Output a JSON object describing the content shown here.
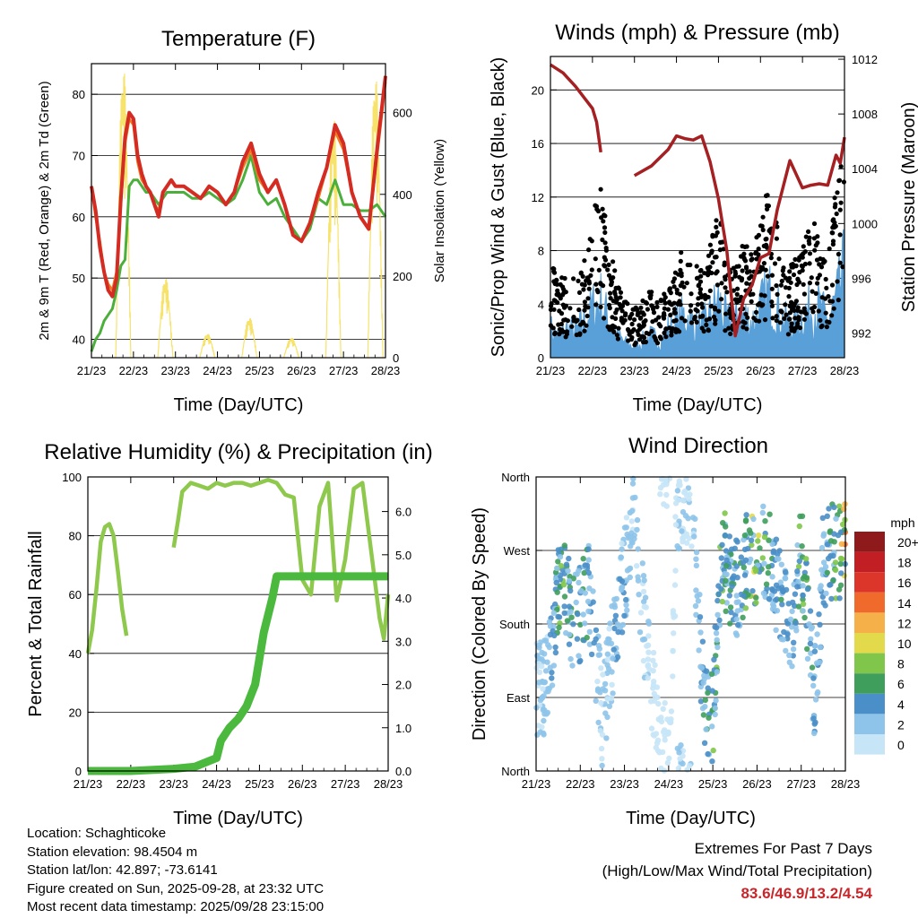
{
  "chart_data": [
    {
      "type": "line",
      "title": "Temperature (F)",
      "xlabel": "Time (Day/UTC)",
      "ylabel": "2m & 9m T (Red, Orange) & 2m Td (Green)",
      "y2label": "Solar Insolation (Yellow)",
      "ylim": [
        37,
        85
      ],
      "y2lim": [
        0,
        720
      ],
      "xticks": [
        "21/23",
        "22/23",
        "23/23",
        "24/23",
        "25/23",
        "26/23",
        "27/23",
        "28/23"
      ],
      "yticks": [
        40,
        50,
        60,
        70,
        80
      ],
      "y2ticks": [
        0,
        200,
        400,
        600
      ],
      "x": [
        0,
        0.1,
        0.2,
        0.3,
        0.4,
        0.5,
        0.6,
        0.7,
        0.8,
        0.9,
        1.0,
        1.1,
        1.2,
        1.3,
        1.4,
        1.5,
        1.6,
        1.7,
        1.8,
        1.9,
        2.0,
        2.2,
        2.4,
        2.6,
        2.8,
        3.0,
        3.2,
        3.4,
        3.6,
        3.8,
        4.0,
        4.2,
        4.4,
        4.6,
        4.8,
        5.0,
        5.2,
        5.4,
        5.6,
        5.8,
        6.0,
        6.2,
        6.4,
        6.6,
        6.8,
        7.0
      ],
      "series": [
        {
          "name": "2m T",
          "color": "#d42b22",
          "values": [
            65,
            61,
            55,
            51,
            48,
            47,
            50,
            63,
            73,
            77,
            76,
            70,
            67,
            65,
            64,
            62,
            60,
            64,
            65,
            66,
            65,
            65,
            64,
            63,
            65,
            64,
            62,
            64,
            69,
            72,
            67,
            64,
            66,
            62,
            57,
            56,
            59,
            64,
            68,
            75,
            72,
            64,
            60,
            58,
            71,
            83
          ]
        },
        {
          "name": "9m T",
          "color": "#f07a24",
          "values": [
            65,
            60,
            56,
            51,
            49,
            48,
            51,
            62,
            72,
            76,
            75,
            69,
            66,
            65,
            64,
            62,
            61,
            64,
            65,
            66,
            65,
            65,
            64,
            63,
            65,
            64,
            62,
            64,
            68,
            71,
            66,
            64,
            66,
            62,
            57,
            56,
            59,
            63,
            68,
            74,
            71,
            64,
            60,
            58,
            70,
            82
          ]
        },
        {
          "name": "2m Td",
          "color": "#4caf3c",
          "values": [
            38,
            40,
            41,
            43,
            44,
            45,
            48,
            52,
            53,
            65,
            66,
            66,
            65,
            64,
            64,
            63,
            62,
            63,
            64,
            64,
            64,
            64,
            63,
            63,
            64,
            63,
            62,
            63,
            66,
            70,
            64,
            62,
            63,
            60,
            58,
            56,
            58,
            63,
            62,
            66,
            62,
            62,
            61,
            61,
            62,
            60
          ]
        }
      ],
      "insolation": {
        "name": "Solar Insolation",
        "color": "#f7e36b",
        "days": [
          0,
          1,
          2,
          3,
          4,
          5,
          6
        ],
        "peaks": [
          720,
          200,
          60,
          100,
          50,
          600,
          700
        ]
      }
    },
    {
      "type": "scatter",
      "title": "Winds (mph) & Pressure (mb)",
      "xlabel": "Time (Day/UTC)",
      "ylabel": "Sonic/Prop Wind & Gust (Blue, Black)",
      "y2label": "Station Pressure (Maroon)",
      "ylim": [
        0,
        22.5
      ],
      "y2lim": [
        990.2,
        1012.2
      ],
      "xticks": [
        "21/23",
        "22/23",
        "23/23",
        "24/23",
        "25/23",
        "26/23",
        "27/23",
        "28/23"
      ],
      "yticks": [
        0,
        4,
        8,
        12,
        16,
        20
      ],
      "y2ticks": [
        992,
        996,
        1000,
        1004,
        1008,
        1012
      ],
      "pressure": {
        "name": "Station Pressure",
        "color": "#a52022",
        "segments": [
          {
            "x": [
              0,
              0.3,
              0.6,
              0.8,
              1.0,
              1.1,
              1.2
            ],
            "values": [
              1011.6,
              1011.0,
              1010.0,
              1009.2,
              1008.4,
              1007.4,
              1005.2
            ]
          },
          {
            "x": [
              2.0,
              2.4,
              2.8,
              3.0,
              3.2,
              3.4,
              3.6,
              3.8,
              4.0,
              4.2,
              4.4,
              4.6,
              4.8,
              5.0,
              5.2,
              5.4,
              5.7,
              6.0,
              6.2,
              6.4,
              6.6,
              6.8,
              6.9,
              7.0
            ],
            "values": [
              1003.5,
              1004.2,
              1005.4,
              1006.4,
              1006.2,
              1006.1,
              1006.4,
              1004.5,
              1001.8,
              998.0,
              991.8,
              994.5,
              995.5,
              997.5,
              997.8,
              1001.0,
              1004.6,
              1002.6,
              1002.8,
              1002.9,
              1002.8,
              1005.0,
              1004.4,
              1006.3
            ]
          }
        ]
      },
      "wind": {
        "name": "Sonic/Prop Wind",
        "color": "#5aa0d8",
        "x": [
          0,
          0.2,
          0.4,
          0.6,
          0.8,
          1.0,
          1.2,
          1.4,
          1.6,
          1.8,
          2.0,
          2.2,
          2.4,
          2.6,
          2.8,
          3.0,
          3.2,
          3.4,
          3.6,
          3.8,
          4.0,
          4.2,
          4.4,
          4.6,
          4.8,
          5.0,
          5.2,
          5.4,
          5.6,
          5.8,
          6.0,
          6.2,
          6.4,
          6.6,
          6.8,
          7.0
        ],
        "values": [
          2,
          1.5,
          2,
          1.8,
          2.5,
          3.5,
          4,
          2.5,
          1.5,
          1,
          0.8,
          1.2,
          1.5,
          1.2,
          2,
          2.5,
          3,
          2.5,
          2.2,
          3,
          4,
          2.5,
          2.5,
          3,
          2.5,
          3.5,
          4.5,
          3.5,
          2.5,
          2.5,
          3,
          3.5,
          3.5,
          2.5,
          4,
          6
        ]
      },
      "gust": {
        "name": "Gust",
        "color": "#000000",
        "x": [
          0,
          0.2,
          0.4,
          0.6,
          0.8,
          1.0,
          1.2,
          1.4,
          1.6,
          1.8,
          2.0,
          2.2,
          2.4,
          2.6,
          2.8,
          3.0,
          3.2,
          3.4,
          3.6,
          3.8,
          4.0,
          4.2,
          4.4,
          4.6,
          4.8,
          5.0,
          5.2,
          5.4,
          5.6,
          5.8,
          6.0,
          6.2,
          6.4,
          6.6,
          6.8,
          7.0
        ],
        "values": [
          5,
          4,
          4.5,
          4,
          5,
          7.5,
          9,
          6,
          4,
          3,
          2.5,
          3,
          3.5,
          3,
          4,
          5,
          6,
          5,
          4.5,
          6,
          8,
          5,
          5,
          6,
          5.5,
          7,
          9,
          7,
          5,
          5,
          6,
          7,
          7,
          5,
          9,
          13
        ]
      }
    },
    {
      "type": "line",
      "title": "Relative Humidity (%) & Precipitation (in)",
      "xlabel": "Time (Day/UTC)",
      "ylabel": "Percent & Total Rainfall",
      "ylim": [
        0,
        100
      ],
      "y2lim": [
        0,
        6.8
      ],
      "xticks": [
        "21/23",
        "22/23",
        "23/23",
        "24/23",
        "25/23",
        "26/23",
        "27/23",
        "28/23"
      ],
      "yticks": [
        0,
        20,
        40,
        60,
        80,
        100
      ],
      "y2ticks": [
        "0.0",
        "1.0",
        "2.0",
        "3.0",
        "4.0",
        "5.0",
        "6.0"
      ],
      "series": [
        {
          "name": "Relative Humidity",
          "color": "#8ec94e",
          "segments": [
            {
              "x": [
                0,
                0.1,
                0.2,
                0.3,
                0.4,
                0.5,
                0.6,
                0.7,
                0.8,
                0.9
              ],
              "values": [
                40,
                48,
                62,
                78,
                83,
                84,
                80,
                68,
                55,
                46
              ]
            },
            {
              "x": [
                2.0,
                2.1,
                2.2,
                2.4,
                2.6,
                2.8,
                3.0,
                3.2,
                3.4,
                3.6,
                3.8,
                4.0,
                4.2,
                4.4,
                4.6,
                4.8,
                5.0,
                5.2,
                5.4,
                5.6,
                5.8,
                6.0,
                6.2,
                6.4,
                6.6,
                6.8,
                6.9,
                7.0
              ],
              "values": [
                76,
                85,
                95,
                98,
                97,
                96,
                98,
                97,
                98,
                98,
                97,
                98,
                99,
                98,
                94,
                93,
                65,
                60,
                90,
                98,
                58,
                72,
                96,
                98,
                75,
                52,
                45,
                60
              ]
            }
          ]
        },
        {
          "name": "Total Rainfall",
          "color": "#4bb93e",
          "x": [
            0,
            1,
            2,
            2.5,
            3,
            3.1,
            3.3,
            3.5,
            3.7,
            3.9,
            4.0,
            4.1,
            4.3,
            4.4,
            4.5,
            4.6,
            7.0
          ],
          "values": [
            0,
            0,
            0.05,
            0.1,
            0.3,
            0.7,
            1.0,
            1.2,
            1.5,
            2.0,
            2.6,
            3.2,
            4.0,
            4.5,
            4.5,
            4.5,
            4.5
          ]
        }
      ]
    },
    {
      "type": "scatter",
      "title": "Wind Direction",
      "xlabel": "Time (Day/UTC)",
      "ylabel": "Direction (Colored By Speed)",
      "ylim": [
        0,
        360
      ],
      "xticks": [
        "21/23",
        "22/23",
        "23/23",
        "24/23",
        "25/23",
        "26/23",
        "27/23",
        "28/23"
      ],
      "yticks": [
        "North",
        "East",
        "South",
        "West",
        "North"
      ],
      "colorbar": {
        "unit": "mph",
        "labels": [
          "0",
          "2",
          "4",
          "6",
          "8",
          "10",
          "12",
          "14",
          "16",
          "18",
          "20+"
        ],
        "colors": [
          "#c6e5f7",
          "#8ec4ea",
          "#4a8fc8",
          "#3f9e5c",
          "#7fc64a",
          "#e2da4a",
          "#f5b04a",
          "#f06a2b",
          "#dc352a",
          "#c11f24",
          "#8e1a1c"
        ]
      },
      "x": [
        0.2,
        0.6,
        0.8,
        1.0,
        1.2,
        1.5,
        1.8,
        2.2,
        2.5,
        2.8,
        3.0,
        3.2,
        3.5,
        3.8,
        4.0,
        4.2,
        4.5,
        4.8,
        5.0,
        5.2,
        5.5,
        5.8,
        6.0,
        6.3,
        6.5,
        6.7,
        6.9,
        7.0
      ],
      "directions": [
        100,
        250,
        180,
        190,
        220,
        60,
        180,
        300,
        150,
        30,
        20,
        330,
        340,
        80,
        70,
        270,
        220,
        260,
        265,
        270,
        220,
        150,
        270,
        90,
        260,
        270,
        265,
        275
      ],
      "speeds": [
        2,
        7,
        4,
        5,
        4,
        1,
        3,
        2,
        1,
        0,
        0,
        1,
        1,
        4,
        5,
        6,
        4,
        6,
        9,
        5,
        4,
        3,
        6,
        4,
        3,
        5,
        8,
        10
      ]
    }
  ],
  "station_info": {
    "location": "Location: Schaghticoke",
    "elevation": "Station elevation: 98.4504 m",
    "latlon": "Station lat/lon: 42.897; -73.6141",
    "created": "Figure created on Sun, 2025-09-28, at 23:32 UTC",
    "recent": "Most recent data timestamp: 2025/09/28 23:15:00"
  },
  "extremes": {
    "heading": "Extremes For Past 7 Days",
    "subheading": "(High/Low/Max Wind/Total Precipitation)",
    "values": "83.6/46.9/13.2/4.54"
  }
}
